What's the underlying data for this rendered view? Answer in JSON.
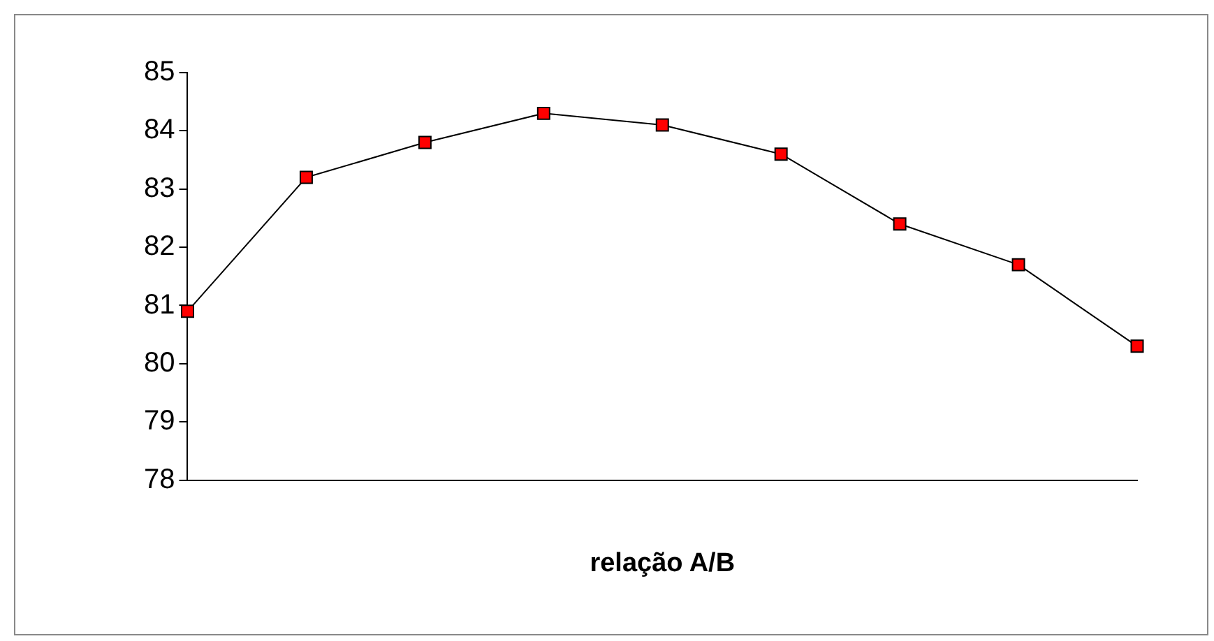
{
  "chart_data": {
    "type": "line",
    "xlabel": "relação A/B",
    "categories": [
      null,
      null,
      null,
      null,
      null,
      null,
      null,
      null,
      null
    ],
    "series": [
      {
        "color": "#ff0000",
        "values": [
          80.9,
          83.2,
          83.8,
          84.3,
          84.1,
          83.6,
          82.4,
          81.7,
          80.3
        ]
      }
    ],
    "ylim": [
      78,
      85
    ],
    "yticks": [
      78,
      79,
      80,
      81,
      82,
      83,
      84,
      85
    ],
    "grid": false,
    "legend": false,
    "marker": "square",
    "line_style": "solid"
  }
}
